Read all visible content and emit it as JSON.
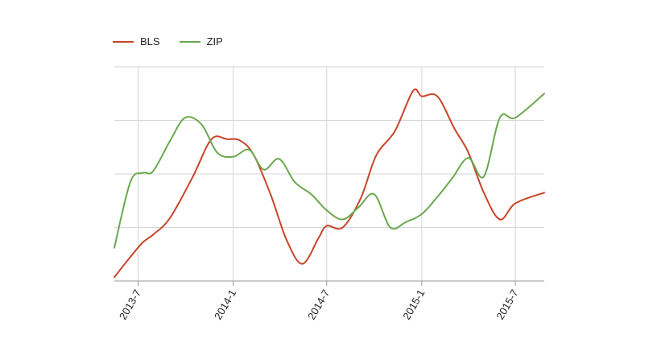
{
  "colors": {
    "BLS": "#c8442a",
    "ZIP": "#6aa84f",
    "grid": "#d6d6d6",
    "axis": "#999999"
  },
  "chart_data": {
    "type": "line",
    "xlabel": "",
    "ylabel": "",
    "xlim": [
      "2013-05-16",
      "2015-08-26"
    ],
    "ylim": [
      0,
      4
    ],
    "y_gridlines": [
      0,
      1,
      2,
      3,
      4
    ],
    "grid": true,
    "legend_position": "top-left",
    "x_ticks": [
      {
        "date": "2013-07-01",
        "label": "2013-7"
      },
      {
        "date": "2014-01-01",
        "label": "2014-1"
      },
      {
        "date": "2014-07-01",
        "label": "2014-7"
      },
      {
        "date": "2015-01-01",
        "label": "2015-1"
      },
      {
        "date": "2015-07-01",
        "label": "2015-7"
      }
    ],
    "series": [
      {
        "name": "BLS",
        "color": "#c8442a",
        "x": [
          "2013-05-16",
          "2013-06-16",
          "2013-07-10",
          "2013-08-01",
          "2013-09-01",
          "2013-10-15",
          "2013-11-20",
          "2013-12-20",
          "2014-01-15",
          "2014-02-10",
          "2014-03-15",
          "2014-04-15",
          "2014-05-15",
          "2014-06-15",
          "2014-07-01",
          "2014-08-01",
          "2014-09-05",
          "2014-10-05",
          "2014-11-10",
          "2014-12-15",
          "2015-01-01",
          "2015-01-31",
          "2015-03-05",
          "2015-04-01",
          "2015-05-01",
          "2015-06-01",
          "2015-07-01",
          "2015-08-26"
        ],
        "y": [
          0.07,
          0.45,
          0.72,
          0.88,
          1.18,
          1.95,
          2.65,
          2.65,
          2.62,
          2.35,
          1.6,
          0.75,
          0.32,
          0.8,
          1.03,
          1.0,
          1.55,
          2.35,
          2.8,
          3.55,
          3.45,
          3.45,
          2.85,
          2.4,
          1.65,
          1.15,
          1.45,
          1.65
        ]
      },
      {
        "name": "ZIP",
        "color": "#6aa84f",
        "x": [
          "2013-05-16",
          "2013-06-16",
          "2013-07-10",
          "2013-07-30",
          "2013-09-01",
          "2013-09-30",
          "2013-11-01",
          "2013-12-01",
          "2014-01-01",
          "2014-02-01",
          "2014-03-01",
          "2014-03-31",
          "2014-04-30",
          "2014-06-01",
          "2014-07-01",
          "2014-08-01",
          "2014-09-01",
          "2014-10-01",
          "2014-11-01",
          "2014-12-01",
          "2015-01-01",
          "2015-02-01",
          "2015-03-01",
          "2015-04-01",
          "2015-05-01",
          "2015-06-01",
          "2015-07-01",
          "2015-08-26"
        ],
        "y": [
          0.62,
          1.85,
          2.02,
          2.05,
          2.62,
          3.05,
          2.92,
          2.4,
          2.32,
          2.45,
          2.08,
          2.28,
          1.85,
          1.62,
          1.32,
          1.15,
          1.38,
          1.62,
          1.0,
          1.1,
          1.25,
          1.58,
          1.92,
          2.3,
          1.95,
          3.05,
          3.05,
          3.5
        ]
      }
    ]
  }
}
